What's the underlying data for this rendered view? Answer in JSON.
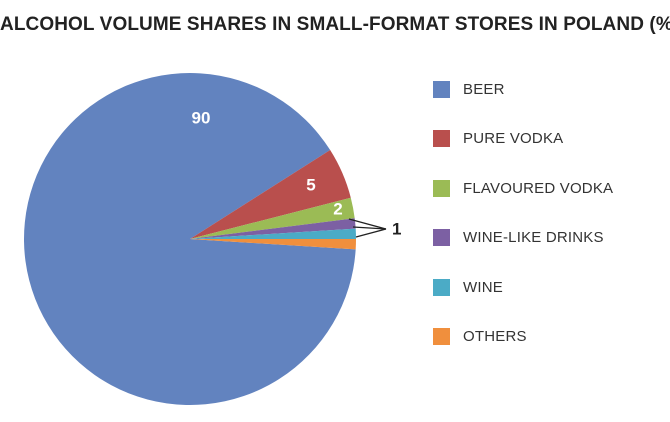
{
  "chart_data": {
    "type": "pie",
    "title": "ALCOHOL VOLUME SHARES IN SMALL-FORMAT STORES IN POLAND (%)",
    "slices": [
      {
        "name": "BEER",
        "value": 90,
        "color": "#6283bf",
        "label": "90"
      },
      {
        "name": "PURE VODKA",
        "value": 5,
        "color": "#b94f4d",
        "label": "5"
      },
      {
        "name": "FLAVOURED VODKA",
        "value": 2,
        "color": "#9bbb55",
        "label": "2"
      },
      {
        "name": "WINE-LIKE DRINKS",
        "value": 1,
        "color": "#7c60a3",
        "label": ""
      },
      {
        "name": "WINE",
        "value": 1,
        "color": "#4babc6",
        "label": ""
      },
      {
        "name": "OTHERS",
        "value": 1,
        "color": "#f08f3d",
        "label": ""
      }
    ],
    "callout_label": "1",
    "legend_position": "right"
  }
}
